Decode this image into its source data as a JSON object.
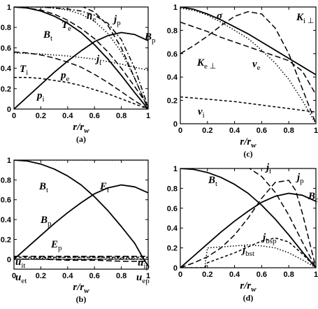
{
  "chart_data": [
    {
      "id": "a",
      "type": "line",
      "caption": "(a)",
      "xlabel": "r/r",
      "xlabel_sub": "w",
      "xlim": [
        0,
        1
      ],
      "ylim": [
        0,
        1
      ],
      "xticks": [
        "0",
        "0.2",
        "0.4",
        "0.6",
        "0.8",
        "1"
      ],
      "yticks": [
        "0",
        "0.2",
        "0.4",
        "0.6",
        "0.8",
        "1"
      ],
      "grid": false,
      "series": [
        {
          "name": "B_t",
          "style": "solid",
          "x": [
            0,
            0.1,
            0.2,
            0.3,
            0.4,
            0.5,
            0.6,
            0.7,
            0.8,
            0.9,
            1.0
          ],
          "values": [
            1.0,
            0.99,
            0.96,
            0.91,
            0.84,
            0.75,
            0.63,
            0.49,
            0.33,
            0.16,
            0.0
          ]
        },
        {
          "name": "B_p",
          "style": "solid",
          "x": [
            0,
            0.1,
            0.2,
            0.3,
            0.4,
            0.5,
            0.6,
            0.7,
            0.8,
            0.9,
            1.0
          ],
          "values": [
            0.0,
            0.12,
            0.24,
            0.36,
            0.47,
            0.57,
            0.66,
            0.72,
            0.75,
            0.73,
            0.67
          ]
        },
        {
          "name": "T_e",
          "style": "long-dash",
          "x": [
            0,
            0.1,
            0.2,
            0.3,
            0.4,
            0.5,
            0.6,
            0.7,
            0.8,
            0.9,
            1.0
          ],
          "values": [
            1.0,
            0.99,
            0.97,
            0.93,
            0.87,
            0.79,
            0.69,
            0.56,
            0.4,
            0.22,
            0.03
          ]
        },
        {
          "name": "n_e",
          "style": "dash-dot",
          "x": [
            0,
            0.1,
            0.2,
            0.3,
            0.4,
            0.5,
            0.6,
            0.7,
            0.8,
            0.9,
            1.0
          ],
          "values": [
            1.0,
            1.0,
            1.0,
            0.99,
            0.98,
            0.96,
            0.92,
            0.84,
            0.68,
            0.4,
            0.02
          ]
        },
        {
          "name": "j_p",
          "style": "dotted",
          "x": [
            0,
            0.1,
            0.2,
            0.3,
            0.4,
            0.5,
            0.6,
            0.7,
            0.8,
            0.9,
            1.0
          ],
          "values": [
            1.0,
            1.0,
            1.0,
            0.99,
            0.97,
            0.93,
            0.86,
            0.74,
            0.56,
            0.3,
            0.0
          ]
        },
        {
          "name": "j_t",
          "style": "long-dash",
          "x": [
            0,
            0.1,
            0.2,
            0.3,
            0.4,
            0.5,
            0.6,
            0.7,
            0.8,
            0.9,
            1.0
          ],
          "values": [
            1.0,
            1.01,
            1.02,
            1.03,
            1.03,
            1.01,
            0.95,
            0.82,
            0.6,
            0.3,
            0.0
          ]
        },
        {
          "name": "T_i",
          "style": "dotted",
          "x": [
            0,
            0.2,
            0.4,
            0.6,
            0.8,
            1.0
          ],
          "values": [
            0.55,
            0.54,
            0.52,
            0.49,
            0.44,
            0.38
          ]
        },
        {
          "name": "p_e",
          "style": "long-dash",
          "x": [
            0,
            0.1,
            0.2,
            0.3,
            0.4,
            0.5,
            0.6,
            0.7,
            0.8,
            0.9,
            1.0
          ],
          "values": [
            0.56,
            0.55,
            0.53,
            0.5,
            0.46,
            0.41,
            0.34,
            0.26,
            0.17,
            0.08,
            0.0
          ]
        },
        {
          "name": "p_i",
          "style": "short-dash",
          "x": [
            0,
            0.1,
            0.2,
            0.3,
            0.4,
            0.5,
            0.6,
            0.7,
            0.8,
            0.9,
            1.0
          ],
          "values": [
            0.31,
            0.31,
            0.3,
            0.28,
            0.26,
            0.23,
            0.19,
            0.15,
            0.1,
            0.05,
            0.0
          ]
        }
      ]
    },
    {
      "id": "c",
      "type": "line",
      "caption": "(c)",
      "xlabel": "r/r",
      "xlabel_sub": "w",
      "xlim": [
        0,
        1
      ],
      "ylim": [
        0,
        1
      ],
      "xticks": [
        "0",
        "0.2",
        "0.4",
        "0.6",
        "0.8",
        "1"
      ],
      "yticks": [
        "0",
        "0.2",
        "0.4",
        "0.6",
        "0.8",
        "1"
      ],
      "grid": false,
      "series": [
        {
          "name": "σ",
          "style": "solid",
          "x": [
            0,
            0.1,
            0.2,
            0.3,
            0.4,
            0.5,
            0.6,
            0.7,
            0.8,
            0.9,
            1.0
          ],
          "values": [
            1.0,
            0.98,
            0.94,
            0.89,
            0.83,
            0.77,
            0.7,
            0.63,
            0.56,
            0.49,
            0.42
          ]
        },
        {
          "name": "K_i⊥",
          "style": "long-dash",
          "x": [
            0,
            0.1,
            0.2,
            0.3,
            0.4,
            0.5,
            0.6,
            0.7,
            0.8,
            0.9,
            1.0
          ],
          "values": [
            0.6,
            0.67,
            0.75,
            0.84,
            0.92,
            0.96,
            0.94,
            0.82,
            0.6,
            0.3,
            0.0
          ]
        },
        {
          "name": "K_e⊥",
          "style": "long-dash",
          "x": [
            0,
            0.1,
            0.2,
            0.3,
            0.4,
            0.5,
            0.6,
            0.7,
            0.8,
            0.9,
            1.0
          ],
          "values": [
            0.87,
            0.83,
            0.79,
            0.74,
            0.7,
            0.66,
            0.62,
            0.58,
            0.54,
            0.45,
            0.25
          ]
        },
        {
          "name": "ν_e",
          "style": "dotted",
          "x": [
            0,
            0.1,
            0.2,
            0.3,
            0.4,
            0.5,
            0.6,
            0.7,
            0.8,
            0.9,
            1.0
          ],
          "values": [
            0.99,
            0.97,
            0.93,
            0.87,
            0.8,
            0.73,
            0.63,
            0.52,
            0.38,
            0.2,
            0.0
          ]
        },
        {
          "name": "ν_i",
          "style": "short-dash",
          "x": [
            0,
            0.2,
            0.4,
            0.6,
            0.8,
            1.0
          ],
          "values": [
            0.23,
            0.21,
            0.19,
            0.16,
            0.13,
            0.1
          ]
        }
      ]
    },
    {
      "id": "b",
      "type": "line",
      "caption": "(b)",
      "xlabel": "r/r",
      "xlabel_sub": "w",
      "xlim": [
        0,
        1
      ],
      "ylim": [
        -0.1,
        1
      ],
      "xticks": [
        "0",
        "0.2",
        "0.4",
        "0.6",
        "0.8",
        "1"
      ],
      "yticks": [
        "0",
        "0.2",
        "0.4",
        "0.6",
        "0.8",
        "1"
      ],
      "grid": false,
      "series": [
        {
          "name": "B_t",
          "style": "solid",
          "x": [
            0,
            0.1,
            0.2,
            0.3,
            0.4,
            0.5,
            0.6,
            0.7,
            0.8,
            0.9,
            0.95,
            1.0
          ],
          "values": [
            1.0,
            0.99,
            0.96,
            0.91,
            0.84,
            0.75,
            0.63,
            0.49,
            0.33,
            0.16,
            0.04,
            -0.07
          ]
        },
        {
          "name": "B_p",
          "style": "solid",
          "x": [
            0,
            0.1,
            0.2,
            0.3,
            0.4,
            0.5,
            0.6,
            0.7,
            0.8,
            0.9,
            1.0
          ],
          "values": [
            0.0,
            0.12,
            0.24,
            0.36,
            0.47,
            0.57,
            0.66,
            0.72,
            0.75,
            0.73,
            0.67
          ]
        },
        {
          "name": "E_t",
          "style": "dotted",
          "x": [
            0,
            0.2,
            0.4,
            0.6,
            0.8,
            1.0
          ],
          "values": [
            1.0,
            1.0,
            1.0,
            1.0,
            1.0,
            1.0
          ]
        },
        {
          "name": "E_p",
          "style": "dotted",
          "x": [
            0,
            0.2,
            0.4,
            0.6,
            0.8,
            1.0
          ],
          "values": [
            0.0,
            0.01,
            0.02,
            0.02,
            0.01,
            0.0
          ]
        },
        {
          "name": "u_it",
          "style": "long-dash",
          "x": [
            0,
            0.2,
            0.4,
            0.6,
            0.8,
            1.0
          ],
          "values": [
            0.03,
            0.03,
            0.03,
            0.03,
            0.03,
            0.03
          ]
        },
        {
          "name": "u_ip",
          "style": "short-dash",
          "x": [
            0,
            0.2,
            0.4,
            0.6,
            0.8,
            1.0
          ],
          "values": [
            0.02,
            0.02,
            0.02,
            0.02,
            0.02,
            0.02
          ]
        },
        {
          "name": "u_et",
          "style": "dash-dot",
          "x": [
            0,
            0.2,
            0.4,
            0.6,
            0.8,
            1.0
          ],
          "values": [
            0.0,
            0.0,
            0.0,
            0.0,
            0.0,
            0.0
          ]
        },
        {
          "name": "u_ep",
          "style": "long-dash",
          "x": [
            0,
            0.2,
            0.4,
            0.6,
            0.8,
            1.0
          ],
          "values": [
            0.0,
            0.0,
            -0.01,
            -0.01,
            -0.02,
            -0.02
          ]
        }
      ]
    },
    {
      "id": "d",
      "type": "line",
      "caption": "(d)",
      "xlabel": "r/r",
      "xlabel_sub": "w",
      "xlim": [
        0,
        1
      ],
      "ylim": [
        0,
        1
      ],
      "xticks": [
        "0",
        "0.2",
        "0.4",
        "0.6",
        "0.8",
        "1"
      ],
      "yticks": [
        "0",
        "0.2",
        "0.4",
        "0.6",
        "0.8",
        "1"
      ],
      "grid": false,
      "series": [
        {
          "name": "B_t",
          "style": "solid",
          "x": [
            0,
            0.1,
            0.2,
            0.3,
            0.4,
            0.5,
            0.6,
            0.7,
            0.8,
            0.9,
            1.0
          ],
          "values": [
            1.0,
            0.99,
            0.96,
            0.91,
            0.84,
            0.75,
            0.63,
            0.49,
            0.33,
            0.16,
            0.0
          ]
        },
        {
          "name": "B_p",
          "style": "solid",
          "x": [
            0,
            0.1,
            0.2,
            0.3,
            0.4,
            0.5,
            0.6,
            0.7,
            0.8,
            0.9,
            1.0
          ],
          "values": [
            0.0,
            0.12,
            0.24,
            0.36,
            0.47,
            0.57,
            0.66,
            0.72,
            0.75,
            0.73,
            0.67
          ]
        },
        {
          "name": "j_t",
          "style": "long-dash",
          "x": [
            0,
            0.1,
            0.2,
            0.3,
            0.4,
            0.5,
            0.6,
            0.7,
            0.8,
            0.9,
            1.0
          ],
          "values": [
            1.0,
            1.02,
            1.04,
            1.06,
            1.05,
            1.01,
            0.92,
            0.76,
            0.53,
            0.26,
            0.0
          ]
        },
        {
          "name": "j_p",
          "style": "long-dash",
          "x": [
            0,
            0.1,
            0.2,
            0.3,
            0.4,
            0.5,
            0.6,
            0.7,
            0.8,
            0.85,
            0.9,
            1.0
          ],
          "values": [
            0.0,
            0.05,
            0.11,
            0.2,
            0.33,
            0.5,
            0.7,
            0.86,
            0.88,
            0.78,
            0.55,
            0.0
          ]
        },
        {
          "name": "j_bst",
          "style": "dotted",
          "x": [
            0,
            0.18,
            0.2,
            0.3,
            0.4,
            0.5,
            0.6,
            0.7,
            0.8,
            0.9,
            1.0
          ],
          "values": [
            0.0,
            0.0,
            0.2,
            0.21,
            0.22,
            0.23,
            0.22,
            0.2,
            0.15,
            0.08,
            0.0
          ]
        },
        {
          "name": "j_bsp",
          "style": "short-dash",
          "x": [
            0,
            0.18,
            0.2,
            0.3,
            0.4,
            0.5,
            0.6,
            0.7,
            0.8,
            0.9,
            1.0
          ],
          "values": [
            0.0,
            0.0,
            0.05,
            0.1,
            0.15,
            0.21,
            0.27,
            0.3,
            0.26,
            0.14,
            0.0
          ]
        }
      ]
    }
  ],
  "labels": {
    "a": [
      {
        "base": "B",
        "sub": "t"
      },
      {
        "base": "T",
        "sub": "e"
      },
      {
        "base": "n",
        "sub": "e"
      },
      {
        "base": "j",
        "sub": "p"
      },
      {
        "base": "B",
        "sub": "p"
      },
      {
        "base": "j",
        "sub": "t"
      },
      {
        "base": "T",
        "sub": "i"
      },
      {
        "base": "p",
        "sub": "e"
      },
      {
        "base": "p",
        "sub": "i"
      }
    ],
    "c": [
      {
        "base": "σ",
        "sub": ""
      },
      {
        "base": "K",
        "sub": "i ⊥"
      },
      {
        "base": "K",
        "sub": "e ⊥"
      },
      {
        "base": "ν",
        "sub": "e"
      },
      {
        "base": "ν",
        "sub": "i"
      }
    ],
    "b": [
      {
        "base": "B",
        "sub": "t"
      },
      {
        "base": "E",
        "sub": "t"
      },
      {
        "base": "B",
        "sub": "p"
      },
      {
        "base": "E",
        "sub": "p"
      },
      {
        "base": "u",
        "sub": "it"
      },
      {
        "base": "u",
        "sub": "ip"
      },
      {
        "base": "u",
        "sub": "et"
      },
      {
        "base": "u",
        "sub": "ep"
      }
    ],
    "d": [
      {
        "base": "B",
        "sub": "t"
      },
      {
        "base": "j",
        "sub": "t"
      },
      {
        "base": "j",
        "sub": "p"
      },
      {
        "base": "B",
        "sub": "p"
      },
      {
        "base": "j",
        "sub": "bst"
      },
      {
        "base": "j",
        "sub": "bsp"
      }
    ]
  }
}
